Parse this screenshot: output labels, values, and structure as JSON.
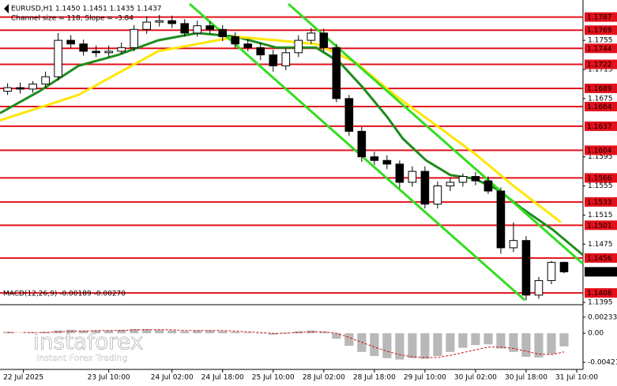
{
  "chart_data": {
    "type": "candlestick",
    "title": "EURUSD,H1  1.1450 1.1451 1.1435 1.1437",
    "subtitle": "Channel size = 118, Slope = -3.84",
    "x": [
      0,
      1,
      2,
      3,
      4,
      5,
      6,
      7,
      8,
      9,
      10,
      11,
      12,
      13,
      14,
      15,
      16,
      17,
      18,
      19,
      20,
      21,
      22,
      23,
      24,
      25,
      26,
      27,
      28,
      29,
      30,
      31,
      32,
      33,
      34,
      35,
      36,
      37,
      38,
      39,
      40,
      41,
      42,
      43,
      44
    ],
    "open": [
      1.1685,
      1.169,
      1.1688,
      1.1695,
      1.1705,
      1.1755,
      1.175,
      1.174,
      1.1738,
      1.174,
      1.1745,
      1.177,
      1.178,
      1.1782,
      1.1778,
      1.1765,
      1.1775,
      1.177,
      1.176,
      1.175,
      1.1745,
      1.1735,
      1.172,
      1.1738,
      1.1755,
      1.1765,
      1.1745,
      1.1675,
      1.163,
      1.1595,
      1.159,
      1.1585,
      1.156,
      1.1575,
      1.153,
      1.1555,
      1.156,
      1.1568,
      1.1562,
      1.1548,
      1.147,
      1.148,
      1.1405,
      1.1425,
      1.145
    ],
    "high": [
      1.1696,
      1.1697,
      1.1699,
      1.1712,
      1.1765,
      1.1762,
      1.1756,
      1.1748,
      1.1748,
      1.1752,
      1.1776,
      1.1788,
      1.179,
      1.1789,
      1.1784,
      1.1782,
      1.1781,
      1.1776,
      1.1766,
      1.1757,
      1.1752,
      1.1742,
      1.1744,
      1.1762,
      1.1772,
      1.1771,
      1.175,
      1.168,
      1.1636,
      1.1602,
      1.1597,
      1.159,
      1.1582,
      1.1582,
      1.1561,
      1.1566,
      1.1572,
      1.1574,
      1.1568,
      1.1553,
      1.1505,
      1.1486,
      1.143,
      1.1452,
      1.1451
    ],
    "low": [
      1.168,
      1.1682,
      1.1683,
      1.169,
      1.17,
      1.1744,
      1.1734,
      1.1732,
      1.1732,
      1.1736,
      1.174,
      1.1764,
      1.1774,
      1.1772,
      1.176,
      1.176,
      1.1764,
      1.1754,
      1.1744,
      1.174,
      1.1728,
      1.1712,
      1.1714,
      1.1732,
      1.175,
      1.174,
      1.167,
      1.1624,
      1.1588,
      1.1584,
      1.1578,
      1.1552,
      1.1554,
      1.1524,
      1.1524,
      1.1548,
      1.1554,
      1.1556,
      1.1544,
      1.1462,
      1.1464,
      1.1398,
      1.14,
      1.142,
      1.1435
    ],
    "close": [
      1.169,
      1.1688,
      1.1695,
      1.1705,
      1.1755,
      1.175,
      1.174,
      1.1738,
      1.174,
      1.1745,
      1.177,
      1.178,
      1.1782,
      1.1778,
      1.1765,
      1.1775,
      1.177,
      1.176,
      1.175,
      1.1745,
      1.1735,
      1.172,
      1.1738,
      1.1755,
      1.1765,
      1.1745,
      1.1675,
      1.163,
      1.1595,
      1.159,
      1.1585,
      1.156,
      1.1575,
      1.153,
      1.1555,
      1.156,
      1.1568,
      1.1562,
      1.1548,
      1.147,
      1.148,
      1.1405,
      1.1425,
      1.145,
      1.1437
    ],
    "xlim": [
      -0.6,
      45.5
    ],
    "xticks": [
      {
        "value": 1.25,
        "label": "22 Jul 2025"
      },
      {
        "value": 8,
        "label": "23 Jul 10:00"
      },
      {
        "value": 13,
        "label": "24 Jul 02:00"
      },
      {
        "value": 17,
        "label": "24 Jul 18:00"
      },
      {
        "value": 21,
        "label": "25 Jul 10:00"
      },
      {
        "value": 25,
        "label": "28 Jul 02:00"
      },
      {
        "value": 29,
        "label": "28 Jul 18:00"
      },
      {
        "value": 33,
        "label": "29 Jul 10:00"
      },
      {
        "value": 37,
        "label": "30 Jul 02:00"
      },
      {
        "value": 41,
        "label": "30 Jul 18:00"
      },
      {
        "value": 45,
        "label": "31 Jul 10:00"
      }
    ],
    "ylim": [
      1.1394,
      1.1805
    ],
    "yticks": [
      1.1755,
      1.1715,
      1.1675,
      1.1595,
      1.1555,
      1.1515,
      1.1475,
      1.1395
    ],
    "levels": {
      "color": "#e3101a",
      "values": [
        1.1787,
        1.1769,
        1.1744,
        1.1722,
        1.1689,
        1.1664,
        1.1637,
        1.1604,
        1.1566,
        1.1533,
        1.1501,
        1.1456,
        1.1408
      ]
    },
    "series": [
      {
        "color": "#1e8c1e",
        "x": [
          -0.6,
          2.5,
          5.6,
          8.75,
          11.9,
          15,
          18.1,
          21.25,
          24.4,
          26.25,
          28.1,
          30,
          31.25,
          33.1,
          35,
          36.9,
          38.75,
          40.6,
          43.1,
          45.5
        ],
        "values": [
          1.1655,
          1.1685,
          1.172,
          1.1735,
          1.1755,
          1.1765,
          1.176,
          1.1745,
          1.1745,
          1.1725,
          1.169,
          1.165,
          1.162,
          1.159,
          1.157,
          1.1565,
          1.155,
          1.1525,
          1.1495,
          1.146
        ]
      },
      {
        "color": "#ffe600",
        "x": [
          -0.6,
          5.6,
          11.9,
          18.1,
          24.4,
          27.5,
          30.6,
          33.75,
          36.9,
          40,
          43.75
        ],
        "values": [
          1.1645,
          1.168,
          1.174,
          1.176,
          1.175,
          1.1725,
          1.168,
          1.164,
          1.16,
          1.1555,
          1.1505
        ]
      }
    ],
    "channel": [
      {
        "color": "#33dd22",
        "x": [
          14.4,
          40.9
        ],
        "y": [
          1.1805,
          1.1398
        ]
      },
      {
        "color": "#33dd22",
        "x": [
          22.2,
          45.5
        ],
        "y": [
          1.1805,
          1.1448
        ]
      }
    ],
    "macd": {
      "label": "MACD(12,26,9) -0.00189 -0.00270",
      "ylim": [
        -0.005,
        0.0039
      ],
      "yticks": [
        0.00233,
        {
          "value": 0,
          "label": "0.00"
        },
        -0.00421
      ],
      "histogram": {
        "color": "#b8b8b8",
        "values": [
          0.0002,
          0.0001,
          0.0001,
          0.0002,
          0.0004,
          0.0005,
          0.0004,
          0.0004,
          0.0004,
          0.0005,
          0.0006,
          0.0006,
          0.0005,
          0.0004,
          0.0003,
          0.0004,
          0.0004,
          0.0003,
          0.0002,
          0.0001,
          0.0,
          -0.0002,
          0.0001,
          0.0003,
          0.0004,
          0.0002,
          -0.0008,
          -0.0018,
          -0.0027,
          -0.0033,
          -0.0036,
          -0.0038,
          -0.0036,
          -0.0037,
          -0.0033,
          -0.0027,
          -0.0021,
          -0.0017,
          -0.0016,
          -0.0022,
          -0.0027,
          -0.0034,
          -0.0035,
          -0.003,
          -0.00189
        ]
      },
      "signal": {
        "color": "#d01010",
        "values": [
          0.0001,
          0.0001,
          0.0001,
          0.0001,
          0.0002,
          0.0003,
          0.0003,
          0.0004,
          0.0004,
          0.0004,
          0.0005,
          0.0005,
          0.0005,
          0.0005,
          0.0004,
          0.0004,
          0.0004,
          0.0004,
          0.0003,
          0.0002,
          0.0001,
          0.0,
          0.0,
          0.0001,
          0.0002,
          0.0002,
          0.0,
          -0.0006,
          -0.0013,
          -0.002,
          -0.0026,
          -0.0031,
          -0.0034,
          -0.0035,
          -0.0035,
          -0.0032,
          -0.0028,
          -0.0024,
          -0.002,
          -0.002,
          -0.0022,
          -0.0026,
          -0.003,
          -0.0031,
          -0.0027
        ]
      }
    },
    "watermark": {
      "brand": "instaforex",
      "tagline": "Instant Forex Trading"
    }
  }
}
